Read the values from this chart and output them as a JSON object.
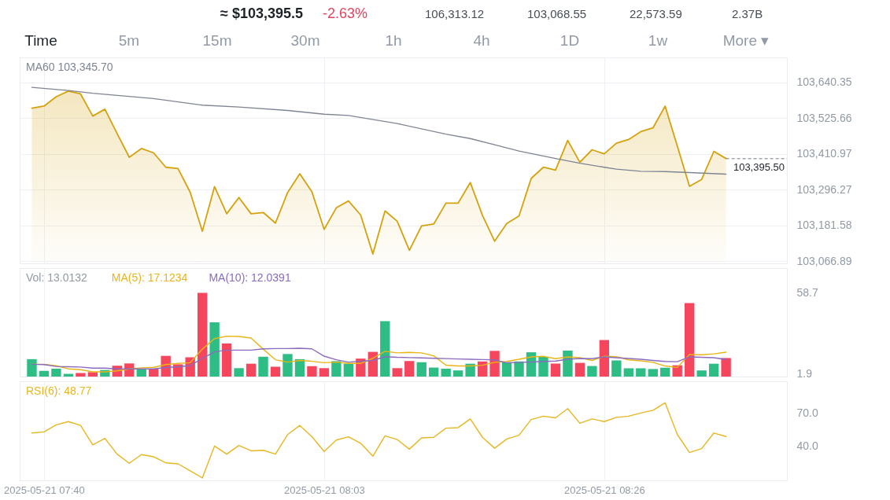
{
  "chart_data": [
    {
      "type": "area",
      "annotations": [
        "≈ $103,395.5",
        "-2.63%",
        "106,313.12",
        "103,068.55",
        "22,573.59",
        "2.37B",
        "Time",
        "5m",
        "15m",
        "30m",
        "1h",
        "4h",
        "1D",
        "1w",
        "More ▾"
      ],
      "x": [
        "2025-05-21T07:39",
        "2025-05-21T07:40",
        "2025-05-21T07:41",
        "2025-05-21T07:42",
        "2025-05-21T07:43",
        "2025-05-21T07:44",
        "2025-05-21T07:45",
        "2025-05-21T07:46",
        "2025-05-21T07:47",
        "2025-05-21T07:48",
        "2025-05-21T07:49",
        "2025-05-21T07:50",
        "2025-05-21T07:51",
        "2025-05-21T07:52",
        "2025-05-21T07:53",
        "2025-05-21T07:54",
        "2025-05-21T07:55",
        "2025-05-21T07:56",
        "2025-05-21T07:57",
        "2025-05-21T07:58",
        "2025-05-21T07:59",
        "2025-05-21T08:00",
        "2025-05-21T08:01",
        "2025-05-21T08:02",
        "2025-05-21T08:03",
        "2025-05-21T08:04",
        "2025-05-21T08:05",
        "2025-05-21T08:06",
        "2025-05-21T08:07",
        "2025-05-21T08:08",
        "2025-05-21T08:09",
        "2025-05-21T08:10",
        "2025-05-21T08:11",
        "2025-05-21T08:12",
        "2025-05-21T08:13",
        "2025-05-21T08:14",
        "2025-05-21T08:15",
        "2025-05-21T08:16",
        "2025-05-21T08:17",
        "2025-05-21T08:18",
        "2025-05-21T08:19",
        "2025-05-21T08:20",
        "2025-05-21T08:21",
        "2025-05-21T08:22",
        "2025-05-21T08:23",
        "2025-05-21T08:24",
        "2025-05-21T08:25",
        "2025-05-21T08:26",
        "2025-05-21T08:27",
        "2025-05-21T08:28",
        "2025-05-21T08:29",
        "2025-05-21T08:30",
        "2025-05-21T08:31",
        "2025-05-21T08:32",
        "2025-05-21T08:33",
        "2025-05-21T08:34",
        "2025-05-21T08:35",
        "2025-05-21T08:36"
      ],
      "xlim": [
        "2025-05-21T07:38",
        "2025-05-21T08:41"
      ],
      "xticks": [
        {
          "value": "2025-05-21T07:40"
        },
        {
          "value": "2025-05-21T08:03"
        },
        {
          "value": "2025-05-21T08:26"
        }
      ],
      "ylim": [
        103060,
        103720
      ],
      "yticks": [
        {
          "value": 103066.89,
          "label": "103,066.89"
        },
        {
          "value": 103181.58,
          "label": "103,181.58"
        },
        {
          "value": 103296.27,
          "label": "103,296.27"
        },
        {
          "value": 103410.97,
          "label": "103,410.97"
        },
        {
          "value": 103525.66,
          "label": "103,525.66"
        },
        {
          "value": 103640.35,
          "label": "103,640.35"
        }
      ],
      "grid": true,
      "tick_labels": "y",
      "series": [
        {
          "color": "#d4a20e",
          "values": [
            103557,
            103564,
            103594,
            103612,
            103603,
            103532,
            103554,
            103476,
            103400,
            103428,
            103414,
            103368,
            103364,
            103288,
            103163,
            103306,
            103219,
            103271,
            103219,
            103223,
            103189,
            103287,
            103347,
            103289,
            103169,
            103238,
            103260,
            103215,
            103090,
            103228,
            103195,
            103102,
            103180,
            103186,
            103253,
            103253,
            103319,
            103214,
            103131,
            103188,
            103212,
            103332,
            103368,
            103359,
            103454,
            103384,
            103424,
            103411,
            103445,
            103457,
            103482,
            103494,
            103564,
            103436,
            103307,
            103329,
            103419,
            103396
          ]
        },
        {
          "name": "MA60 103,345.70",
          "type": "line",
          "color": "#7f8592",
          "x": [
            "2025-05-21T07:39",
            "2025-05-21T07:42",
            "2025-05-21T07:44",
            "2025-05-21T07:49",
            "2025-05-21T07:53",
            "2025-05-21T07:56",
            "2025-05-21T08:00",
            "2025-05-21T08:03",
            "2025-05-21T08:05",
            "2025-05-21T08:09",
            "2025-05-21T08:13",
            "2025-05-21T08:15",
            "2025-05-21T08:17",
            "2025-05-21T08:19",
            "2025-05-21T08:22",
            "2025-05-21T08:24",
            "2025-05-21T08:26",
            "2025-05-21T08:27",
            "2025-05-21T08:29",
            "2025-05-21T08:31",
            "2025-05-21T08:33",
            "2025-05-21T08:36"
          ],
          "values": [
            103624,
            103614,
            103605,
            103588,
            103567,
            103561,
            103550,
            103538,
            103534,
            103508,
            103474,
            103460,
            103440,
            103420,
            103396,
            103381,
            103368,
            103362,
            103355,
            103354,
            103351,
            103346
          ]
        }
      ],
      "ref_lines": [
        {
          "axis": "y",
          "value": 103395.5,
          "label": "103,395.50",
          "line_style": "dashed",
          "color": "#707a8a"
        }
      ]
    },
    {
      "type": "bar",
      "title": "Vol: 13.0132",
      "x": [
        "2025-05-21T07:39",
        "2025-05-21T07:40",
        "2025-05-21T07:41",
        "2025-05-21T07:42",
        "2025-05-21T07:43",
        "2025-05-21T07:44",
        "2025-05-21T07:45",
        "2025-05-21T07:46",
        "2025-05-21T07:47",
        "2025-05-21T07:48",
        "2025-05-21T07:49",
        "2025-05-21T07:50",
        "2025-05-21T07:51",
        "2025-05-21T07:52",
        "2025-05-21T07:53",
        "2025-05-21T07:54",
        "2025-05-21T07:55",
        "2025-05-21T07:56",
        "2025-05-21T07:57",
        "2025-05-21T07:58",
        "2025-05-21T07:59",
        "2025-05-21T08:00",
        "2025-05-21T08:01",
        "2025-05-21T08:02",
        "2025-05-21T08:03",
        "2025-05-21T08:04",
        "2025-05-21T08:05",
        "2025-05-21T08:06",
        "2025-05-21T08:07",
        "2025-05-21T08:08",
        "2025-05-21T08:09",
        "2025-05-21T08:10",
        "2025-05-21T08:11",
        "2025-05-21T08:12",
        "2025-05-21T08:13",
        "2025-05-21T08:14",
        "2025-05-21T08:15",
        "2025-05-21T08:16",
        "2025-05-21T08:17",
        "2025-05-21T08:18",
        "2025-05-21T08:19",
        "2025-05-21T08:20",
        "2025-05-21T08:21",
        "2025-05-21T08:22",
        "2025-05-21T08:23",
        "2025-05-21T08:24",
        "2025-05-21T08:25",
        "2025-05-21T08:26",
        "2025-05-21T08:27",
        "2025-05-21T08:28",
        "2025-05-21T08:29",
        "2025-05-21T08:30",
        "2025-05-21T08:31",
        "2025-05-21T08:32",
        "2025-05-21T08:33",
        "2025-05-21T08:34",
        "2025-05-21T08:35",
        "2025-05-21T08:36"
      ],
      "xlim": [
        "2025-05-21T07:38",
        "2025-05-21T08:41"
      ],
      "xticks": [
        {
          "value": "2025-05-21T07:40"
        },
        {
          "value": "2025-05-21T08:03"
        },
        {
          "value": "2025-05-21T08:26"
        }
      ],
      "ylim": [
        0,
        76
      ],
      "yticks": [
        1.9,
        58.7
      ],
      "grid": "x",
      "tick_labels": "y",
      "series": [
        {
          "colors": [
            "#2ebd85",
            "#2ebd85",
            "#2ebd85",
            "#2ebd85",
            "#f6465d",
            "#f6465d",
            "#2ebd85",
            "#f6465d",
            "#f6465d",
            "#2ebd85",
            "#f6465d",
            "#f6465d",
            "#f6465d",
            "#f6465d",
            "#f6465d",
            "#2ebd85",
            "#f6465d",
            "#2ebd85",
            "#f6465d",
            "#2ebd85",
            "#f6465d",
            "#2ebd85",
            "#2ebd85",
            "#f6465d",
            "#f6465d",
            "#2ebd85",
            "#2ebd85",
            "#f6465d",
            "#f6465d",
            "#2ebd85",
            "#f6465d",
            "#f6465d",
            "#2ebd85",
            "#2ebd85",
            "#2ebd85",
            "#2ebd85",
            "#2ebd85",
            "#f6465d",
            "#f6465d",
            "#2ebd85",
            "#2ebd85",
            "#2ebd85",
            "#2ebd85",
            "#f6465d",
            "#2ebd85",
            "#f6465d",
            "#2ebd85",
            "#f6465d",
            "#2ebd85",
            "#2ebd85",
            "#2ebd85",
            "#2ebd85",
            "#2ebd85",
            "#f6465d",
            "#f6465d",
            "#2ebd85",
            "#2ebd85",
            "#f6465d"
          ],
          "values": [
            12.2,
            4.0,
            5.5,
            1.9,
            2.5,
            3.1,
            4.6,
            7.6,
            9.2,
            5.2,
            5.5,
            14.5,
            8.6,
            13.5,
            58.7,
            38.0,
            23.2,
            5.9,
            9.0,
            13.9,
            6.9,
            15.8,
            12.2,
            7.3,
            5.9,
            10.8,
            9.0,
            12.6,
            17.3,
            38.8,
            5.9,
            10.9,
            10.1,
            6.3,
            5.5,
            4.3,
            9.0,
            10.6,
            18.0,
            10.0,
            10.6,
            17.0,
            13.8,
            9.1,
            18.2,
            9.6,
            7.4,
            25.6,
            11.3,
            5.8,
            5.8,
            5.3,
            6.2,
            7.9,
            51.5,
            4.3,
            9.0,
            13.0
          ]
        },
        {
          "name": "MA(5): 17.1234",
          "type": "line",
          "color": "#e8b517",
          "values": [
            8.6,
            8.6,
            7.6,
            5.4,
            4.8,
            3.3,
            3.3,
            4.0,
            5.4,
            6.1,
            6.5,
            8.4,
            9.2,
            9.7,
            19.2,
            26.6,
            28.3,
            28.1,
            27.0,
            19.2,
            11.8,
            10.1,
            11.3,
            10.7,
            9.7,
            10.1,
            9.2,
            9.2,
            12.8,
            17.7,
            16.6,
            16.9,
            16.6,
            14.5,
            8.0,
            7.4,
            7.4,
            7.9,
            10.0,
            10.6,
            12.1,
            13.8,
            14.2,
            12.5,
            13.8,
            13.2,
            11.3,
            14.2,
            14.0,
            11.7,
            11.0,
            10.0,
            7.4,
            6.4,
            15.5,
            15.3,
            15.9,
            17.1
          ]
        },
        {
          "name": "MA(10): 12.0391",
          "type": "line",
          "color": "#8a6bbe",
          "values": [
            8.6,
            8.4,
            7.1,
            6.9,
            6.7,
            5.9,
            5.9,
            5.4,
            5.4,
            5.4,
            5.4,
            6.3,
            6.9,
            7.6,
            12.8,
            17.3,
            18.5,
            18.5,
            18.5,
            19.4,
            19.6,
            19.6,
            19.8,
            19.4,
            14.3,
            11.8,
            10.1,
            10.7,
            11.3,
            13.9,
            13.5,
            13.3,
            13.1,
            12.8,
            12.6,
            12.3,
            12.1,
            11.9,
            11.7,
            9.6,
            10.0,
            10.2,
            10.6,
            10.9,
            12.1,
            12.7,
            12.5,
            13.8,
            13.2,
            12.7,
            12.1,
            11.3,
            10.6,
            10.4,
            13.8,
            13.5,
            13.2,
            12.0
          ]
        }
      ]
    },
    {
      "type": "line",
      "x": [
        "2025-05-21T07:39",
        "2025-05-21T07:40",
        "2025-05-21T07:41",
        "2025-05-21T07:42",
        "2025-05-21T07:43",
        "2025-05-21T07:44",
        "2025-05-21T07:45",
        "2025-05-21T07:46",
        "2025-05-21T07:47",
        "2025-05-21T07:48",
        "2025-05-21T07:49",
        "2025-05-21T07:50",
        "2025-05-21T07:51",
        "2025-05-21T07:52",
        "2025-05-21T07:53",
        "2025-05-21T07:54",
        "2025-05-21T07:55",
        "2025-05-21T07:56",
        "2025-05-21T07:57",
        "2025-05-21T07:58",
        "2025-05-21T07:59",
        "2025-05-21T08:00",
        "2025-05-21T08:01",
        "2025-05-21T08:02",
        "2025-05-21T08:03",
        "2025-05-21T08:04",
        "2025-05-21T08:05",
        "2025-05-21T08:06",
        "2025-05-21T08:07",
        "2025-05-21T08:08",
        "2025-05-21T08:09",
        "2025-05-21T08:10",
        "2025-05-21T08:11",
        "2025-05-21T08:12",
        "2025-05-21T08:13",
        "2025-05-21T08:14",
        "2025-05-21T08:15",
        "2025-05-21T08:16",
        "2025-05-21T08:17",
        "2025-05-21T08:18",
        "2025-05-21T08:19",
        "2025-05-21T08:20",
        "2025-05-21T08:21",
        "2025-05-21T08:22",
        "2025-05-21T08:23",
        "2025-05-21T08:24",
        "2025-05-21T08:25",
        "2025-05-21T08:26",
        "2025-05-21T08:27",
        "2025-05-21T08:28",
        "2025-05-21T08:29",
        "2025-05-21T08:30",
        "2025-05-21T08:31",
        "2025-05-21T08:32",
        "2025-05-21T08:33",
        "2025-05-21T08:34",
        "2025-05-21T08:35",
        "2025-05-21T08:36"
      ],
      "xlim": [
        "2025-05-21T07:38",
        "2025-05-21T08:41"
      ],
      "xticks": [
        {
          "value": "2025-05-21T07:40",
          "label": "2025-05-21 07:40"
        },
        {
          "value": "2025-05-21T08:03",
          "label": "2025-05-21 08:03"
        },
        {
          "value": "2025-05-21T08:26",
          "label": "2025-05-21 08:26"
        }
      ],
      "ylim": [
        9,
        99
      ],
      "yticks": [
        {
          "value": 40,
          "label": "40.0"
        },
        {
          "value": 70,
          "label": "70.0"
        }
      ],
      "grid": "x",
      "series": [
        {
          "name": "RSI(6): 48.77",
          "color": "#e5b722",
          "values": [
            52.0,
            53.0,
            59.4,
            62.4,
            58.9,
            41.2,
            47.1,
            32.8,
            24.5,
            32.4,
            30.4,
            24.9,
            24.0,
            17.6,
            11.2,
            40.2,
            32.8,
            40.7,
            35.8,
            36.3,
            32.8,
            50.6,
            58.9,
            48.6,
            35.3,
            45.6,
            48.6,
            42.7,
            30.9,
            49.5,
            46.1,
            37.3,
            47.6,
            48.1,
            56.4,
            56.9,
            64.8,
            48.1,
            38.2,
            46.6,
            50.0,
            64.3,
            67.3,
            65.8,
            74.2,
            60.9,
            64.8,
            62.4,
            66.2,
            67.3,
            70.2,
            72.7,
            79.5,
            50.6,
            34.3,
            37.8,
            52.0,
            48.8
          ]
        }
      ]
    }
  ]
}
